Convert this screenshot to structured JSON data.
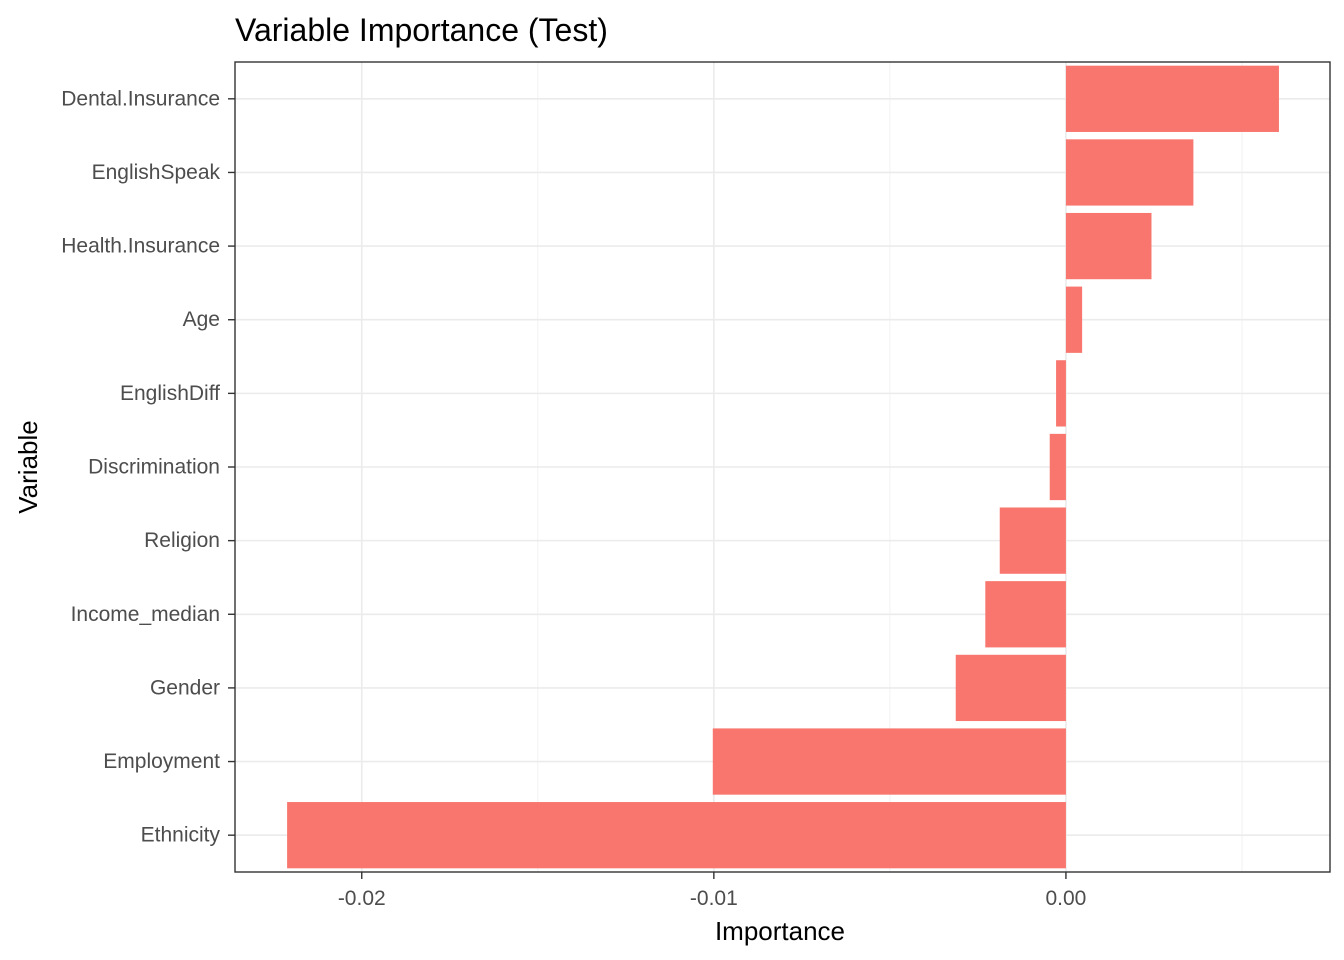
{
  "chart_data": {
    "type": "bar",
    "orientation": "horizontal",
    "title": "Variable Importance (Test)",
    "xlabel": "Importance",
    "ylabel": "Variable",
    "categories": [
      "Dental.Insurance",
      "EnglishSpeak",
      "Health.Insurance",
      "Age",
      "EnglishDiff",
      "Discrimination",
      "Religion",
      "Income_median",
      "Gender",
      "Employment",
      "Ethnicity"
    ],
    "values": [
      0.00605,
      0.00362,
      0.00243,
      0.00046,
      -0.00028,
      -0.00046,
      -0.00188,
      -0.00229,
      -0.00313,
      -0.01003,
      -0.02212
    ],
    "xlim": [
      -0.0236,
      0.0075
    ],
    "xticks": [
      -0.02,
      -0.01,
      0.0
    ],
    "xtick_labels": [
      "-0.02",
      "-0.01",
      "0.00"
    ],
    "bar_color": "#F8766D",
    "grid": true,
    "legend": "none"
  }
}
